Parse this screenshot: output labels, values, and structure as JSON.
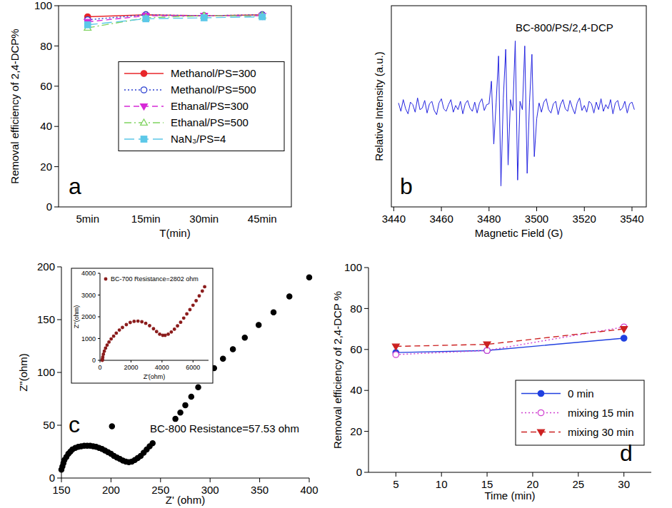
{
  "chart_data": [
    {
      "type": "line",
      "x_label": "T(min)",
      "y_label": "Removal efficiency of 2,4-DCP%",
      "categories": [
        "5min",
        "15min",
        "30min",
        "45min"
      ],
      "ylim": [
        0,
        100
      ],
      "yticks": [
        0,
        20,
        40,
        60,
        80,
        100
      ],
      "grid": false,
      "legend": "center right",
      "annotations": [
        "a"
      ],
      "series": [
        {
          "name": "Methanol/PS=300",
          "color": "#e8262a",
          "marker": "circle",
          "line_style": "solid",
          "values": [
            94.5,
            95.5,
            95,
            95.5
          ]
        },
        {
          "name": "Methanol/PS=500",
          "color": "#2a3fd0",
          "marker": "circle-open",
          "line_style": "dotted",
          "values": [
            93,
            95.5,
            95,
            95.5
          ]
        },
        {
          "name": "Ethanal/PS=300",
          "color": "#d62ad6",
          "marker": "triangle-down",
          "line_style": "dashed",
          "values": [
            92,
            95,
            95,
            95
          ]
        },
        {
          "name": "Ethanal/PS=500",
          "color": "#7fd35f",
          "marker": "triangle-up-open",
          "line_style": "dashdot",
          "values": [
            89,
            94,
            95,
            95
          ]
        },
        {
          "name": "NaN₃/PS=4",
          "color": "#5cc8e8",
          "marker": "square",
          "line_style": "longdash",
          "values": [
            90.5,
            93.5,
            94,
            94.5
          ]
        }
      ]
    },
    {
      "type": "line",
      "title": "BC-800/PS/2,4-DCP",
      "x_label": "Magnetic Field (G)",
      "y_label": "Relative Intensity (a.u.)",
      "x": [
        3442,
        3443,
        3444,
        3445,
        3446,
        3447,
        3448,
        3449,
        3450,
        3451,
        3452,
        3453,
        3454,
        3455,
        3456,
        3457,
        3458,
        3459,
        3460,
        3461,
        3462,
        3463,
        3464,
        3465,
        3466,
        3467,
        3468,
        3469,
        3470,
        3471,
        3472,
        3473,
        3474,
        3475,
        3476,
        3477,
        3478,
        3479,
        3480,
        3481,
        3482,
        3483,
        3484,
        3485,
        3486,
        3487,
        3488,
        3489,
        3490,
        3491,
        3492,
        3493,
        3494,
        3495,
        3496,
        3497,
        3498,
        3499,
        3500,
        3501,
        3502,
        3503,
        3504,
        3505,
        3506,
        3507,
        3508,
        3509,
        3510,
        3511,
        3512,
        3513,
        3514,
        3515,
        3516,
        3517,
        3518,
        3519,
        3520,
        3521,
        3522,
        3523,
        3524,
        3525,
        3526,
        3527,
        3528,
        3529,
        3530,
        3531,
        3532,
        3533,
        3534,
        3535,
        3536,
        3537,
        3538,
        3539,
        3540,
        3541
      ],
      "xlim": [
        3439,
        3546
      ],
      "xticks": [
        3440,
        3460,
        3480,
        3500,
        3520,
        3540
      ],
      "ylim": [
        -120,
        120
      ],
      "tick_labels": "x",
      "grid": false,
      "annotations": [
        "b"
      ],
      "series": [
        {
          "color": "#2424e0",
          "marker": "none",
          "line_style": "solid",
          "values": [
            4,
            -6,
            8,
            -3,
            -9,
            5,
            2,
            -7,
            10,
            -4,
            -2,
            7,
            -8,
            3,
            6,
            -5,
            -10,
            4,
            9,
            -3,
            -6,
            2,
            8,
            -7,
            1,
            -4,
            6,
            -9,
            3,
            7,
            -2,
            -6,
            5,
            -8,
            4,
            9,
            -5,
            2,
            3,
            30,
            -45,
            5,
            60,
            -95,
            10,
            68,
            -70,
            8,
            -5,
            78,
            -88,
            6,
            -4,
            72,
            -80,
            5,
            62,
            -60,
            -15,
            4,
            -7,
            5,
            9,
            -4,
            -8,
            3,
            6,
            -10,
            2,
            8,
            -3,
            -6,
            7,
            -2,
            -9,
            4,
            10,
            -5,
            1,
            -7,
            6,
            3,
            -8,
            5,
            -4,
            9,
            -6,
            2,
            -3,
            8,
            -9,
            4,
            7,
            -5,
            -2,
            6,
            -8,
            3,
            5,
            -4
          ]
        }
      ]
    },
    {
      "type": "scatter",
      "x_label": "Z' (ohm)",
      "y_label": "Z\"(ohm)",
      "x": [
        150,
        151,
        152,
        153,
        155,
        157,
        159,
        161,
        164,
        167,
        170,
        173,
        176,
        179,
        182,
        185,
        188,
        191,
        194,
        197,
        200,
        203,
        206,
        209,
        212,
        215,
        218,
        221,
        224,
        227,
        230,
        233,
        236,
        239,
        242,
        201,
        265,
        270,
        275,
        281,
        288,
        296,
        304,
        313,
        323,
        335,
        349,
        364,
        380,
        400
      ],
      "xlim": [
        150,
        400
      ],
      "xticks": [
        150,
        200,
        250,
        300,
        350,
        400
      ],
      "ylim": [
        0,
        200
      ],
      "yticks": [
        0,
        50,
        100,
        150,
        200
      ],
      "grid": false,
      "annotations": [
        "c",
        "BC-800  Resistance=57.53 ohm"
      ],
      "series": [
        {
          "color": "#000000",
          "marker": "circle",
          "values": [
            8,
            11,
            14,
            17,
            20,
            23,
            25,
            27,
            28.5,
            29.5,
            30,
            30.5,
            30.5,
            30.5,
            30,
            29.5,
            28.5,
            27.5,
            26,
            24.5,
            23,
            21,
            19.5,
            18,
            16.5,
            15.5,
            15,
            15.5,
            17,
            19,
            21,
            24,
            27,
            30,
            33,
            49,
            56,
            62,
            69,
            77,
            86,
            95,
            104,
            113,
            122,
            133,
            145,
            157,
            172,
            190
          ]
        }
      ]
    },
    {
      "type": "scatter",
      "x_label": "Z'(ohm)",
      "y_label": "Z''(ohm)",
      "x": [
        150,
        160,
        180,
        220,
        280,
        360,
        460,
        580,
        720,
        880,
        1050,
        1250,
        1450,
        1700,
        1950,
        2200,
        2450,
        2700,
        2950,
        3200,
        3450,
        3650,
        3850,
        4050,
        4200,
        4400,
        4600,
        4800,
        5000,
        5200,
        5400,
        5600,
        5800,
        6000,
        6200,
        6400,
        6600,
        6750
      ],
      "xlim": [
        0,
        7000
      ],
      "xticks": [
        0,
        2000,
        4000,
        6000
      ],
      "ylim": [
        0,
        4000
      ],
      "yticks": [
        0,
        1000,
        2000,
        3000,
        4000
      ],
      "grid": false,
      "legend": "upper left",
      "series": [
        {
          "name": "BC-700 Resistance=2802 ohm",
          "color": "#8b1c1c",
          "marker": "circle",
          "values": [
            0,
            60,
            150,
            280,
            420,
            560,
            700,
            840,
            980,
            1110,
            1250,
            1390,
            1510,
            1640,
            1740,
            1790,
            1800,
            1770,
            1700,
            1590,
            1450,
            1320,
            1200,
            1150,
            1150,
            1200,
            1300,
            1430,
            1580,
            1750,
            1940,
            2130,
            2330,
            2530,
            2740,
            2960,
            3180,
            3380
          ]
        }
      ]
    },
    {
      "type": "line",
      "x_label": "Time (min)",
      "y_label": "Removal efficiency of 2,4-DCP %",
      "x": [
        5,
        15,
        30
      ],
      "xlim": [
        2,
        33
      ],
      "xticks": [
        5,
        10,
        15,
        20,
        25,
        30
      ],
      "ylim": [
        0,
        100
      ],
      "yticks": [
        0,
        20,
        40,
        60,
        80,
        100
      ],
      "grid": false,
      "legend": "lower right",
      "annotations": [
        "d"
      ],
      "series": [
        {
          "name": "0 min",
          "color": "#2040e0",
          "marker": "circle",
          "line_style": "solid",
          "values": [
            58.5,
            59.5,
            65.5
          ]
        },
        {
          "name": "mixing 15 min",
          "color": "#d040d0",
          "marker": "circle-open",
          "line_style": "dotted",
          "values": [
            57.5,
            59.5,
            71
          ]
        },
        {
          "name": "mixing 30 min",
          "color": "#cc2020",
          "marker": "triangle-down",
          "line_style": "dashed",
          "values": [
            61.5,
            62.5,
            70
          ]
        }
      ]
    }
  ]
}
